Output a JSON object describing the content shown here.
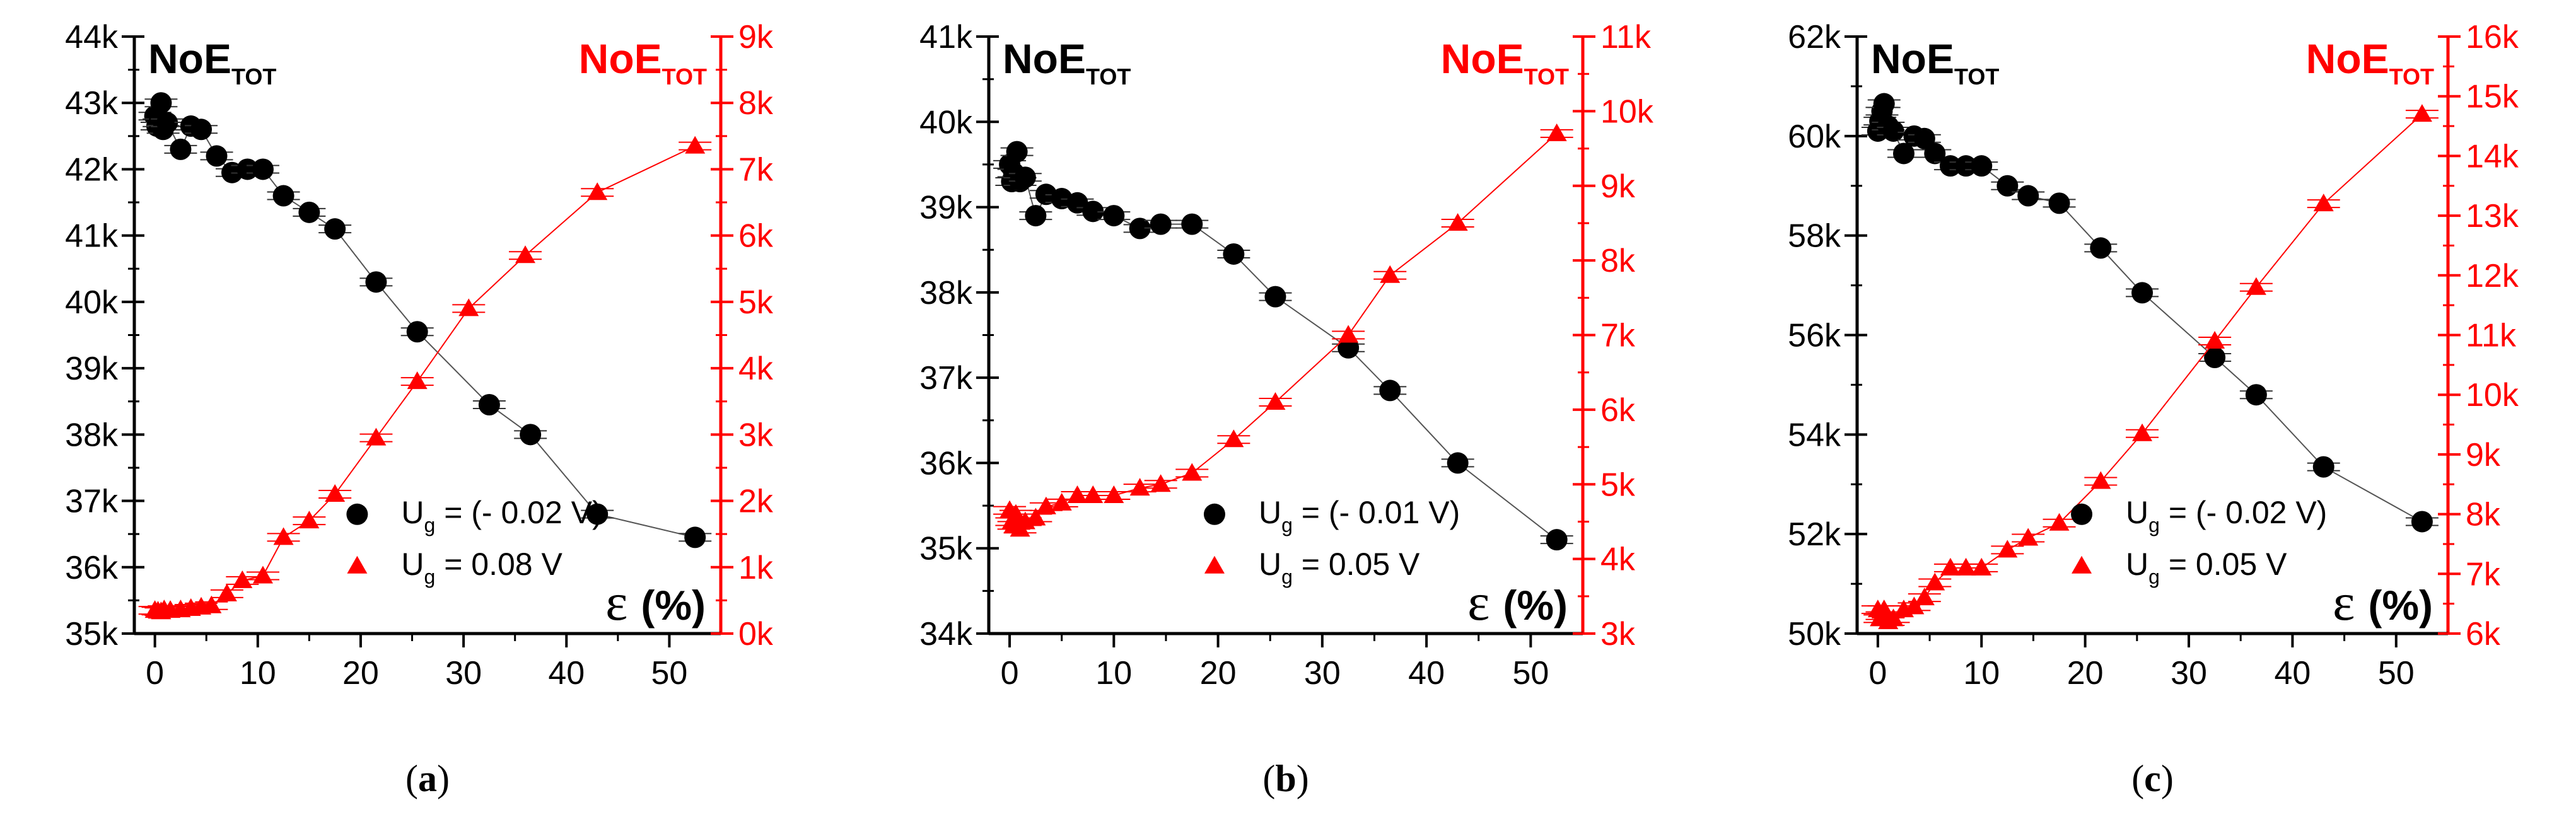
{
  "chart_data": [
    {
      "type": "scatter",
      "caption": {
        "open": "(",
        "letter": "a",
        "close": ")"
      },
      "left_title": {
        "main": "NoE",
        "sub": "TOT"
      },
      "right_title": {
        "main": "NoE",
        "sub": "TOT"
      },
      "xlabel": {
        "symbol": "ε",
        "unit": "(%)"
      },
      "xlim": [
        -2,
        55
      ],
      "xticks": [
        0,
        10,
        20,
        30,
        40,
        50
      ],
      "ylim_left": [
        35000,
        44000
      ],
      "yticks_left": [
        "35k",
        "36k",
        "37k",
        "38k",
        "39k",
        "40k",
        "41k",
        "42k",
        "43k",
        "44k"
      ],
      "ylim_right": [
        0,
        9000
      ],
      "yticks_right": [
        "0k",
        "1k",
        "2k",
        "3k",
        "4k",
        "5k",
        "6k",
        "7k",
        "8k",
        "9k"
      ],
      "legend": [
        {
          "prefix": "U",
          "sub": "g",
          "text": " = (- 0.02 V)"
        },
        {
          "prefix": "U",
          "sub": "g",
          "text": " = 0.08 V"
        }
      ],
      "left_series": {
        "color": "#000000",
        "x": [
          0,
          0.2,
          0.4,
          0.6,
          0.8,
          1.2,
          2.5,
          3.5,
          4.5,
          6,
          7.5,
          9,
          10.5,
          12.5,
          15,
          17.5,
          21.5,
          25.5,
          32.5,
          36.5,
          43,
          52.5
        ],
        "y": [
          42800,
          42650,
          42700,
          43000,
          42600,
          42700,
          42300,
          42650,
          42600,
          42200,
          41950,
          42000,
          42000,
          41600,
          41350,
          41100,
          40300,
          39550,
          38450,
          38000,
          36800,
          36450
        ]
      },
      "right_series": {
        "color": "#ff0000",
        "x": [
          0,
          0.3,
          0.6,
          0.9,
          1.5,
          2.5,
          3.5,
          4.5,
          5.5,
          7,
          8.5,
          10.5,
          12.5,
          15,
          17.5,
          21.5,
          25.5,
          30.5,
          36,
          43,
          52.5
        ],
        "y": [
          350,
          340,
          330,
          360,
          350,
          360,
          380,
          400,
          420,
          600,
          800,
          870,
          1450,
          1700,
          2100,
          2950,
          3800,
          4900,
          5700,
          6650,
          7350
        ]
      }
    },
    {
      "type": "scatter",
      "caption": {
        "open": "(",
        "letter": "b",
        "close": ")"
      },
      "left_title": {
        "main": "NoE",
        "sub": "TOT"
      },
      "right_title": {
        "main": "NoE",
        "sub": "TOT"
      },
      "xlabel": {
        "symbol": "ε",
        "unit": "(%)"
      },
      "xlim": [
        -2,
        55
      ],
      "xticks": [
        0,
        10,
        20,
        30,
        40,
        50
      ],
      "ylim_left": [
        34000,
        41000
      ],
      "yticks_left": [
        "34k",
        "35k",
        "36k",
        "37k",
        "38k",
        "39k",
        "40k",
        "41k"
      ],
      "ylim_right": [
        3000,
        11000
      ],
      "yticks_right": [
        "3k",
        "4k",
        "5k",
        "6k",
        "7k",
        "8k",
        "9k",
        "10k",
        "11k"
      ],
      "legend": [
        {
          "prefix": "U",
          "sub": "g",
          "text": " = (- 0.01 V)"
        },
        {
          "prefix": "U",
          "sub": "g",
          "text": " = 0.05 V"
        }
      ],
      "left_series": {
        "color": "#000000",
        "x": [
          0,
          0.2,
          0.4,
          0.7,
          1,
          1.5,
          2.5,
          3.5,
          5,
          6.5,
          8,
          10,
          12.5,
          14.5,
          17.5,
          21.5,
          25.5,
          32.5,
          36.5,
          43,
          52.5
        ],
        "y": [
          39500,
          39300,
          39400,
          39650,
          39300,
          39350,
          38900,
          39150,
          39100,
          39050,
          38950,
          38900,
          38750,
          38800,
          38800,
          38450,
          37950,
          37350,
          36850,
          36000,
          35100
        ]
      },
      "right_series": {
        "color": "#ff0000",
        "x": [
          0,
          0.2,
          0.4,
          0.6,
          1,
          1.5,
          2.5,
          3.5,
          5,
          6.5,
          8,
          10,
          12.5,
          14.5,
          17.5,
          21.5,
          25.5,
          32.5,
          36.5,
          43,
          52.5
        ],
        "y": [
          4650,
          4500,
          4450,
          4600,
          4400,
          4500,
          4550,
          4700,
          4750,
          4850,
          4850,
          4850,
          4950,
          5000,
          5150,
          5600,
          6100,
          7000,
          7800,
          8500,
          9700
        ]
      }
    },
    {
      "type": "scatter",
      "caption": {
        "open": "(",
        "letter": "c",
        "close": ")"
      },
      "left_title": {
        "main": "NoE",
        "sub": "TOT"
      },
      "right_title": {
        "main": "NoE",
        "sub": "TOT"
      },
      "xlabel": {
        "symbol": "ε",
        "unit": "(%)"
      },
      "xlim": [
        -2,
        55
      ],
      "xticks": [
        0,
        10,
        20,
        30,
        40,
        50
      ],
      "ylim_left": [
        50000,
        62000
      ],
      "yticks_left": [
        "50k",
        "52k",
        "54k",
        "56k",
        "58k",
        "60k",
        "62k"
      ],
      "ylim_right": [
        6000,
        16000
      ],
      "yticks_right": [
        "6k",
        "7k",
        "8k",
        "9k",
        "10k",
        "11k",
        "12k",
        "13k",
        "14k",
        "15k",
        "16k"
      ],
      "legend": [
        {
          "prefix": "U",
          "sub": "g",
          "text": " = (- 0.02 V)"
        },
        {
          "prefix": "U",
          "sub": "g",
          "text": " = 0.05 V"
        }
      ],
      "left_series": {
        "color": "#000000",
        "x": [
          0,
          0.2,
          0.4,
          0.6,
          1,
          1.5,
          2.5,
          3.5,
          4.5,
          5.5,
          7,
          8.5,
          10,
          12.5,
          14.5,
          17.5,
          21.5,
          25.5,
          32.5,
          36.5,
          43,
          52.5
        ],
        "y": [
          60100,
          60300,
          60500,
          60650,
          60200,
          60100,
          59650,
          60000,
          59950,
          59650,
          59400,
          59400,
          59400,
          59000,
          58800,
          58650,
          57750,
          56850,
          55550,
          54800,
          53350,
          52250
        ]
      },
      "right_series": {
        "color": "#ff0000",
        "x": [
          0,
          0.2,
          0.4,
          0.6,
          1,
          1.5,
          2.5,
          3.5,
          4.5,
          5.5,
          7,
          8.5,
          10,
          12.5,
          14.5,
          17.5,
          21.5,
          25.5,
          32.5,
          36.5,
          43,
          52.5
        ],
        "y": [
          6400,
          6250,
          6300,
          6400,
          6200,
          6250,
          6400,
          6450,
          6600,
          6850,
          7100,
          7100,
          7100,
          7400,
          7600,
          7850,
          8550,
          9350,
          10900,
          11800,
          13200,
          14700
        ]
      }
    }
  ]
}
